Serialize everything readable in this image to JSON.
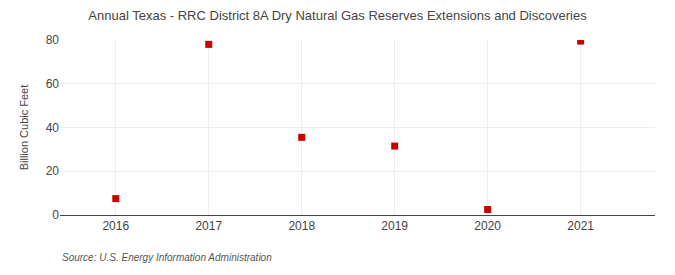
{
  "chart_data": {
    "type": "scatter",
    "title": "Annual Texas - RRC District 8A Dry Natural Gas Reserves Extensions and Discoveries",
    "y_label": "Billion Cubic Feet",
    "annotations": [
      "Source: U.S. Energy Information Administration"
    ],
    "x": [
      2016,
      2017,
      2018,
      2019,
      2020,
      2021
    ],
    "values": [
      7.5,
      78.0,
      35.5,
      31.5,
      2.5,
      79.5
    ],
    "color": "#cc0000",
    "marker": "square",
    "xlim": [
      2015.4,
      2021.8
    ],
    "xticks": [
      2016,
      2017,
      2018,
      2019,
      2020,
      2021
    ],
    "ylim": [
      0,
      80
    ],
    "yticks": [
      0,
      20,
      40,
      60,
      80
    ],
    "grid": true
  }
}
